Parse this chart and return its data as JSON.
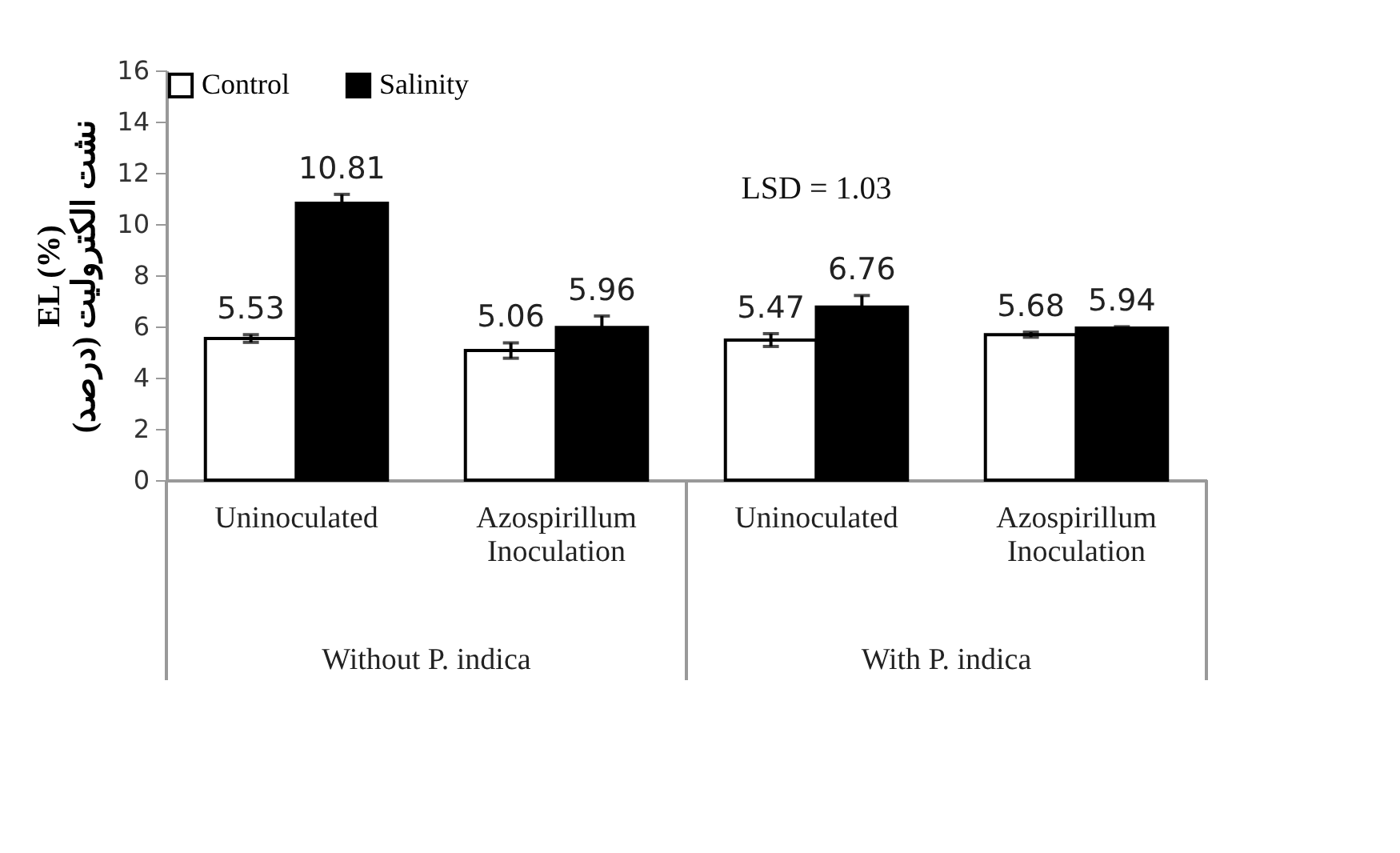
{
  "chart_data": {
    "type": "bar",
    "ylabel": "EL (%)\nنشت الکترولیت (درصد)",
    "categories": [
      "Uninoculated",
      "Azospirillum Inoculation",
      "Uninoculated",
      "Azospirillum Inoculation"
    ],
    "series": [
      {
        "name": "Control",
        "color": "#ffffff",
        "values": [
          5.53,
          5.06,
          5.47,
          5.68
        ],
        "errors": [
          0.15,
          0.3,
          0.25,
          0.1
        ]
      },
      {
        "name": "Salinity",
        "color": "#000000",
        "values": [
          10.81,
          5.96,
          6.76,
          5.94
        ],
        "errors": [
          0.35,
          0.45,
          0.45,
          0.05
        ]
      }
    ],
    "ylim": [
      0,
      16
    ],
    "yticks": [
      0,
      2,
      4,
      6,
      8,
      10,
      12,
      14,
      16
    ],
    "grid": false,
    "legend": "top left",
    "data_labels": true,
    "annotations": [
      "LSD = 1.03",
      "Without P. indica",
      "With P. indica"
    ]
  }
}
